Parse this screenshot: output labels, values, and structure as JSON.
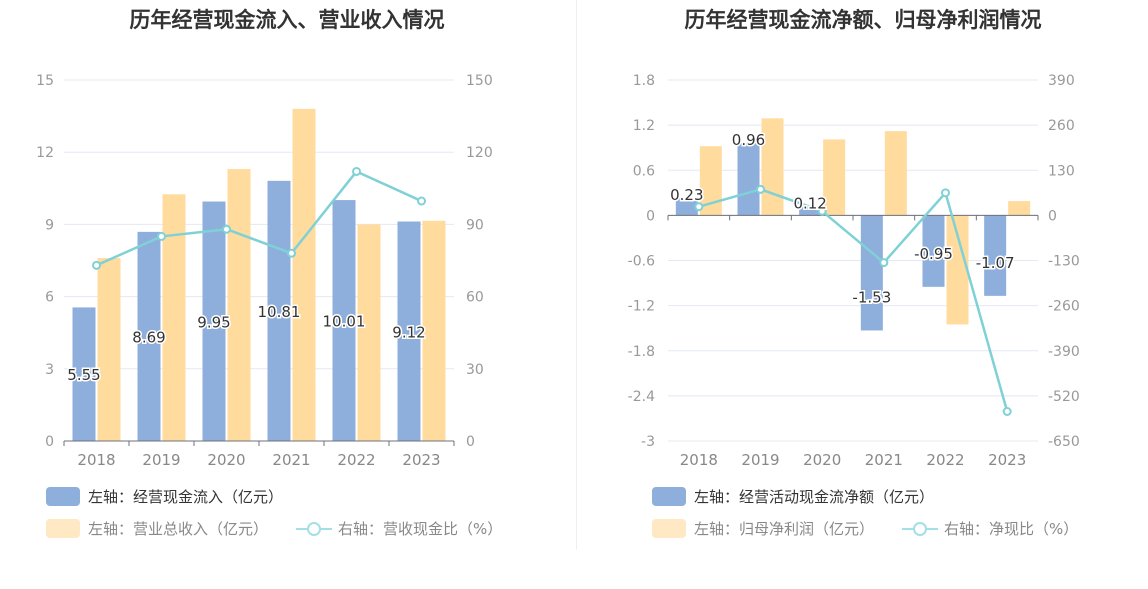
{
  "chart_data": [
    {
      "type": "bar",
      "title": "历年经营现金流入、营业收入情况",
      "categories": [
        "2018",
        "2019",
        "2020",
        "2021",
        "2022",
        "2023"
      ],
      "left_axis": {
        "ticks": [
          "0",
          "3",
          "6",
          "9",
          "12",
          "15"
        ],
        "min": 0,
        "max": 15
      },
      "right_axis": {
        "ticks": [
          "0",
          "30",
          "60",
          "90",
          "120",
          "150"
        ],
        "min": 0,
        "max": 150
      },
      "series": [
        {
          "name": "左轴：经营现金流入（亿元）",
          "type": "bar",
          "axis": "left",
          "color": "#8eaedc",
          "values": [
            5.55,
            8.69,
            9.95,
            10.81,
            10.01,
            9.12
          ],
          "labels": [
            "5.55",
            "8.69",
            "9.95",
            "10.81",
            "10.01",
            "9.12"
          ]
        },
        {
          "name": "左轴：营业总收入（亿元）",
          "type": "bar",
          "axis": "left",
          "color": "#ffdb9e",
          "values": [
            7.6,
            10.25,
            11.3,
            13.8,
            9.0,
            9.15
          ]
        },
        {
          "name": "右轴：营收现金比（%）",
          "type": "line",
          "axis": "right",
          "color": "#7fd1d6",
          "values": [
            73,
            85,
            88,
            78,
            112,
            99.7
          ]
        }
      ]
    },
    {
      "type": "bar",
      "title": "历年经营现金流净额、归母净利润情况",
      "categories": [
        "2018",
        "2019",
        "2020",
        "2021",
        "2022",
        "2023"
      ],
      "left_axis": {
        "ticks": [
          "-3",
          "-2.4",
          "-1.8",
          "-1.2",
          "-0.6",
          "0",
          "0.6",
          "1.2",
          "1.8"
        ],
        "min": -3,
        "max": 1.8
      },
      "right_axis": {
        "ticks": [
          "-650",
          "-520",
          "-390",
          "-260",
          "-130",
          "0",
          "130",
          "260",
          "390"
        ],
        "min": -650,
        "max": 390
      },
      "series": [
        {
          "name": "左轴：经营活动现金流净额（亿元）",
          "type": "bar",
          "axis": "left",
          "color": "#8eaedc",
          "values": [
            0.23,
            0.96,
            0.12,
            -1.53,
            -0.95,
            -1.07
          ],
          "labels": [
            "0.23",
            "0.96",
            "0.12",
            "-1.53",
            "-0.95",
            "-1.07"
          ]
        },
        {
          "name": "左轴：归母净利润（亿元）",
          "type": "bar",
          "axis": "left",
          "color": "#ffdb9e",
          "values": [
            0.92,
            1.29,
            1.01,
            1.12,
            -1.45,
            0.19
          ]
        },
        {
          "name": "右轴：净现比（%）",
          "type": "line",
          "axis": "right",
          "color": "#7fd1d6",
          "values": [
            25,
            75,
            12,
            -136,
            65,
            -565
          ]
        }
      ]
    }
  ]
}
